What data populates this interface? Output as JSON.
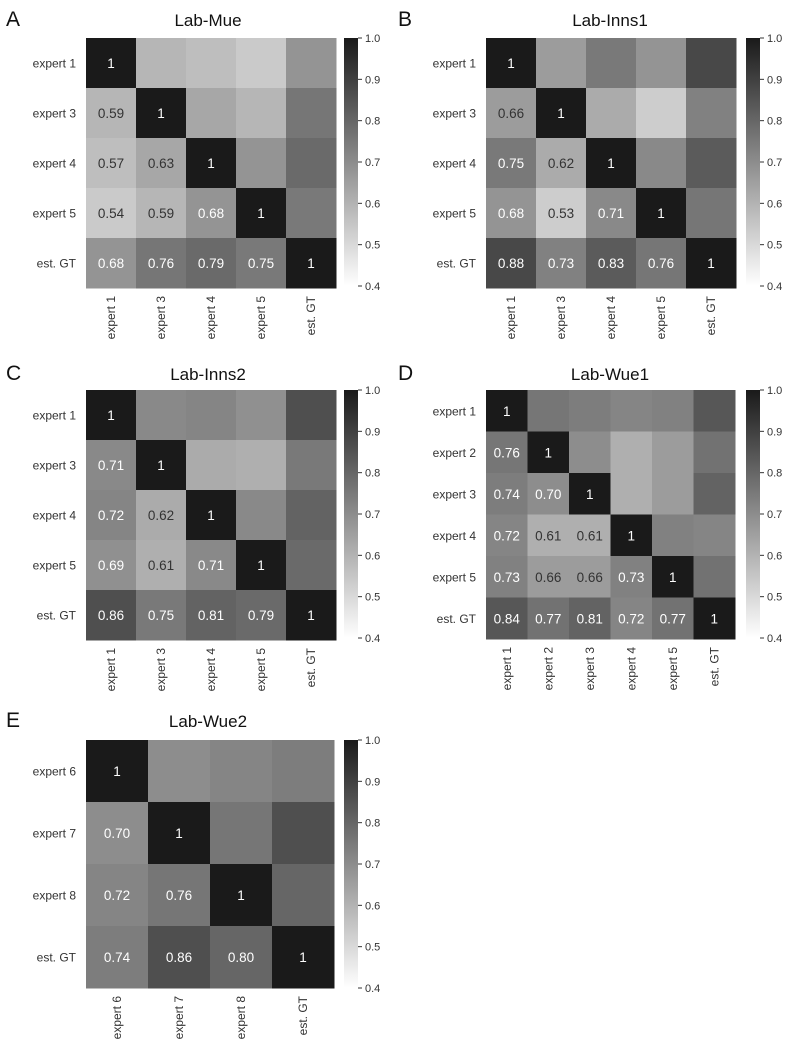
{
  "chart_data": [
    {
      "panel_letter": "A",
      "type": "heatmap",
      "title": "Lab-Mue",
      "row_labels": [
        "expert 1",
        "expert 3",
        "expert 4",
        "expert 5",
        "est. GT"
      ],
      "col_labels": [
        "expert 1",
        "expert 3",
        "expert 4",
        "expert 5",
        "est. GT"
      ],
      "values": [
        [
          1,
          0.59,
          0.57,
          0.54,
          0.68
        ],
        [
          0.59,
          1,
          0.63,
          0.59,
          0.76
        ],
        [
          0.57,
          0.63,
          1,
          0.68,
          0.79
        ],
        [
          0.54,
          0.59,
          0.68,
          1,
          0.75
        ],
        [
          0.68,
          0.76,
          0.79,
          0.75,
          1
        ]
      ],
      "annotate": "lower_triangle",
      "number_format": [
        "1",
        "0.59",
        "0.57",
        "0.54",
        "0.68",
        "0.63",
        "0.76",
        "0.79",
        "0.75"
      ],
      "colorbar": {
        "vmin": 0.4,
        "vmax": 1.0,
        "ticks": [
          "1.0",
          "0.9",
          "0.8",
          "0.7",
          "0.6",
          "0.5",
          "0.4"
        ],
        "colormap": "white-to-black"
      }
    },
    {
      "panel_letter": "B",
      "type": "heatmap",
      "title": "Lab-Inns1",
      "row_labels": [
        "expert 1",
        "expert 3",
        "expert 4",
        "expert 5",
        "est. GT"
      ],
      "col_labels": [
        "expert 1",
        "expert 3",
        "expert 4",
        "expert 5",
        "est. GT"
      ],
      "values": [
        [
          1,
          0.66,
          0.75,
          0.68,
          0.88
        ],
        [
          0.66,
          1,
          0.62,
          0.53,
          0.73
        ],
        [
          0.75,
          0.62,
          1,
          0.71,
          0.83
        ],
        [
          0.68,
          0.53,
          0.71,
          1,
          0.76
        ],
        [
          0.88,
          0.73,
          0.83,
          0.76,
          1
        ]
      ],
      "annotate": "lower_triangle",
      "colorbar": {
        "vmin": 0.4,
        "vmax": 1.0,
        "ticks": [
          "1.0",
          "0.9",
          "0.8",
          "0.7",
          "0.6",
          "0.5",
          "0.4"
        ],
        "colormap": "white-to-black"
      }
    },
    {
      "panel_letter": "C",
      "type": "heatmap",
      "title": "Lab-Inns2",
      "row_labels": [
        "expert 1",
        "expert 3",
        "expert 4",
        "expert 5",
        "est. GT"
      ],
      "col_labels": [
        "expert 1",
        "expert 3",
        "expert 4",
        "expert 5",
        "est. GT"
      ],
      "values": [
        [
          1,
          0.71,
          0.72,
          0.69,
          0.86
        ],
        [
          0.71,
          1,
          0.62,
          0.61,
          0.75
        ],
        [
          0.72,
          0.62,
          1,
          0.71,
          0.81
        ],
        [
          0.69,
          0.61,
          0.71,
          1,
          0.79
        ],
        [
          0.86,
          0.75,
          0.81,
          0.79,
          1
        ]
      ],
      "annotate": "lower_triangle",
      "colorbar": {
        "vmin": 0.4,
        "vmax": 1.0,
        "ticks": [
          "1.0",
          "0.9",
          "0.8",
          "0.7",
          "0.6",
          "0.5",
          "0.4"
        ],
        "colormap": "white-to-black"
      }
    },
    {
      "panel_letter": "D",
      "type": "heatmap",
      "title": "Lab-Wue1",
      "row_labels": [
        "expert 1",
        "expert 2",
        "expert 3",
        "expert 4",
        "expert 5",
        "est. GT"
      ],
      "col_labels": [
        "expert 1",
        "expert 2",
        "expert 3",
        "expert 4",
        "expert 5",
        "est. GT"
      ],
      "values": [
        [
          1,
          0.76,
          0.74,
          0.72,
          0.73,
          0.84
        ],
        [
          0.76,
          1,
          0.7,
          0.61,
          0.66,
          0.77
        ],
        [
          0.74,
          0.7,
          1,
          0.61,
          0.66,
          0.81
        ],
        [
          0.72,
          0.61,
          0.61,
          1,
          0.73,
          0.72
        ],
        [
          0.73,
          0.66,
          0.66,
          0.73,
          1,
          0.77
        ],
        [
          0.84,
          0.77,
          0.81,
          0.72,
          0.77,
          1
        ]
      ],
      "annotate": "lower_triangle",
      "colorbar": {
        "vmin": 0.4,
        "vmax": 1.0,
        "ticks": [
          "1.0",
          "0.9",
          "0.8",
          "0.7",
          "0.6",
          "0.5",
          "0.4"
        ],
        "colormap": "white-to-black"
      }
    },
    {
      "panel_letter": "E",
      "type": "heatmap",
      "title": "Lab-Wue2",
      "row_labels": [
        "expert 6",
        "expert 7",
        "expert 8",
        "est. GT"
      ],
      "col_labels": [
        "expert 6",
        "expert 7",
        "expert 8",
        "est. GT"
      ],
      "values": [
        [
          1,
          0.7,
          0.72,
          0.74
        ],
        [
          0.7,
          1,
          0.76,
          0.86
        ],
        [
          0.72,
          0.76,
          1,
          0.8
        ],
        [
          0.74,
          0.86,
          0.8,
          1
        ]
      ],
      "annotate": "lower_triangle",
      "colorbar": {
        "vmin": 0.4,
        "vmax": 1.0,
        "ticks": [
          "1.0",
          "0.9",
          "0.8",
          "0.7",
          "0.6",
          "0.5",
          "0.4"
        ],
        "colormap": "white-to-black"
      }
    }
  ]
}
